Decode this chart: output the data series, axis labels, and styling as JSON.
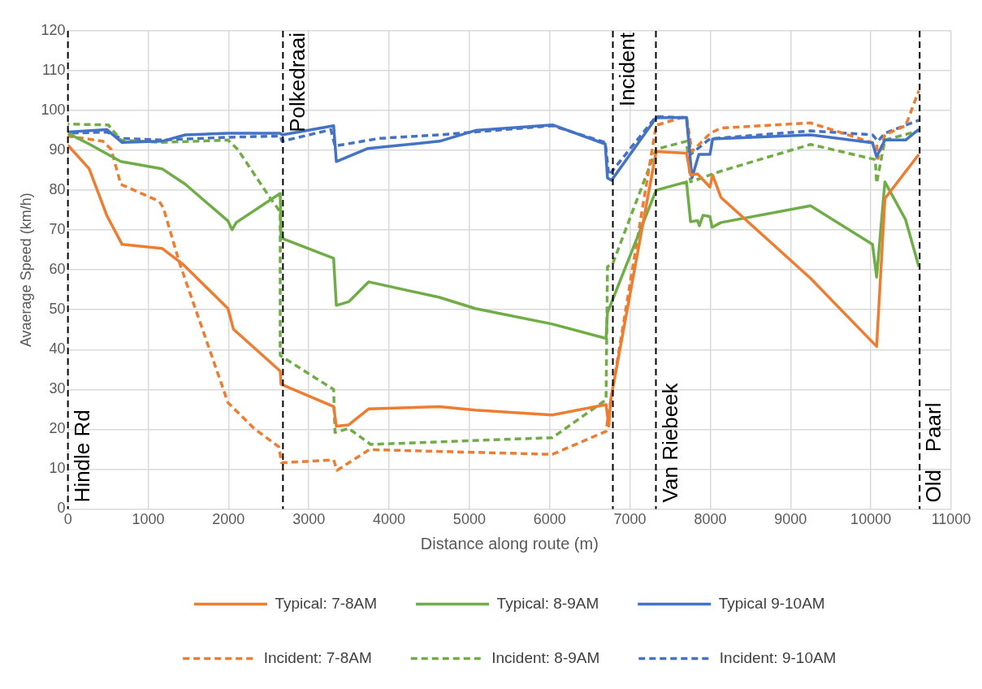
{
  "chart_data": {
    "type": "line",
    "xlabel": "Distance along route (m)",
    "ylabel": "Avaerage Speed (km/h)",
    "xlim": [
      0,
      11000
    ],
    "ylim": [
      0,
      120
    ],
    "xticks": [
      0,
      1000,
      2000,
      3000,
      4000,
      5000,
      6000,
      7000,
      8000,
      9000,
      10000,
      11000
    ],
    "yticks": [
      0,
      10,
      20,
      30,
      40,
      50,
      60,
      70,
      80,
      90,
      100,
      110,
      120
    ],
    "grid": true,
    "legend": "bottom",
    "series": [
      {
        "name": "Typical: 7-8AM",
        "color": "#ed7d31",
        "line_style": "solid",
        "x": [
          0,
          264,
          486,
          675,
          1171,
          1428,
          1993,
          2062,
          2644,
          2654,
          3309,
          3343,
          3497,
          3744,
          4628,
          5074,
          6034,
          6702,
          6737,
          6760,
          7326,
          7704,
          7755,
          7841,
          7996,
          8030,
          8133,
          9249,
          10072,
          10175,
          10598
        ],
        "values": [
          91.3,
          85.4,
          73.6,
          66.4,
          65.4,
          61.5,
          50.3,
          45.1,
          34.6,
          31.3,
          25.7,
          20.8,
          21.1,
          25.1,
          25.7,
          24.8,
          23.6,
          26.2,
          20.8,
          27.4,
          89.7,
          89.3,
          83.8,
          84.1,
          80.8,
          83.8,
          78.2,
          57.9,
          40.8,
          77.9,
          89.0
        ]
      },
      {
        "name": "Typical: 8-9AM",
        "color": "#70ad47",
        "line_style": "solid",
        "x": [
          0,
          264,
          658,
          1171,
          1462,
          1993,
          2045,
          2096,
          2644,
          2654,
          3309,
          3343,
          3497,
          3744,
          4628,
          5074,
          6034,
          6702,
          6720,
          7326,
          7704,
          7755,
          7841,
          7865,
          7910,
          7996,
          8023,
          8133,
          9249,
          10021,
          10072,
          10175,
          10433,
          10598
        ],
        "values": [
          94.3,
          91.6,
          87.2,
          85.4,
          81.5,
          72.3,
          70.1,
          71.9,
          79.2,
          68.0,
          62.9,
          51.1,
          52.0,
          57.0,
          53.1,
          50.3,
          46.4,
          42.8,
          49.3,
          80.0,
          82.1,
          72.1,
          72.4,
          71.1,
          73.7,
          73.4,
          70.7,
          71.9,
          76.1,
          66.4,
          58.2,
          82.1,
          72.6,
          60.8
        ]
      },
      {
        "name": "Typical 9-10AM",
        "color": "#4472c4",
        "line_style": "solid",
        "x": [
          0,
          486,
          675,
          1171,
          1462,
          1993,
          2644,
          2667,
          3309,
          3343,
          3737,
          4628,
          5074,
          6034,
          6692,
          6720,
          6771,
          7326,
          7704,
          7772,
          7858,
          7996,
          8030,
          9249,
          10021,
          10072,
          10175,
          10433,
          10598
        ],
        "values": [
          94.6,
          95.2,
          92.0,
          92.3,
          93.9,
          94.3,
          94.3,
          93.9,
          96.2,
          87.2,
          90.5,
          92.3,
          95.0,
          96.4,
          91.6,
          83.1,
          82.5,
          98.2,
          98.3,
          83.1,
          89.0,
          89.0,
          92.9,
          93.9,
          91.9,
          88.4,
          92.6,
          92.6,
          95.3
        ]
      },
      {
        "name": "Incident: 7-8AM",
        "color": "#ed7d31",
        "line_style": "dashed",
        "x": [
          0,
          435,
          538,
          658,
          1137,
          1188,
          1394,
          1993,
          2318,
          2627,
          2661,
          3309,
          3353,
          3754,
          6034,
          6702,
          6725,
          7326,
          7704,
          7772,
          8000,
          8133,
          9249,
          10072,
          10089,
          10175,
          10433,
          10598
        ],
        "values": [
          93.6,
          92.3,
          90.3,
          81.5,
          77.2,
          75.6,
          61.5,
          26.7,
          20.2,
          15.6,
          11.6,
          12.3,
          9.7,
          14.9,
          13.7,
          19.5,
          22.8,
          96.3,
          98.6,
          89.7,
          94.3,
          95.6,
          96.9,
          91.6,
          88.0,
          93.9,
          96.2,
          105
        ]
      },
      {
        "name": "Incident: 8-9AM",
        "color": "#70ad47",
        "line_style": "dashed",
        "x": [
          0,
          503,
          658,
          1171,
          1993,
          2113,
          2524,
          2644,
          2644,
          3309,
          3326,
          3497,
          3771,
          6034,
          6702,
          6720,
          6784,
          7326,
          7704,
          7755,
          8133,
          9249,
          10055,
          10072,
          10175,
          10598
        ],
        "values": [
          96.6,
          96.4,
          92.6,
          92.0,
          92.6,
          90.3,
          77.9,
          74.6,
          38.5,
          30.0,
          19.2,
          20.2,
          16.2,
          17.9,
          27.4,
          60.8,
          61.5,
          90.3,
          92.3,
          82.1,
          84.8,
          91.5,
          87.7,
          81.8,
          92.6,
          94.9
        ]
      },
      {
        "name": "Incident: 9-10AM",
        "color": "#4472c4",
        "line_style": "dashed",
        "x": [
          0,
          486,
          658,
          1171,
          1993,
          2644,
          2667,
          3275,
          3326,
          3874,
          4628,
          6034,
          6692,
          6737,
          7326,
          7704,
          7755,
          7996,
          9249,
          10021,
          10089,
          10175,
          10598
        ],
        "values": [
          94.3,
          94.6,
          93.0,
          92.6,
          93.3,
          93.6,
          92.3,
          95.2,
          91.1,
          93.0,
          93.9,
          96.2,
          92.0,
          83.8,
          98.5,
          98.2,
          89.0,
          92.9,
          94.9,
          93.9,
          92.3,
          94.3,
          97.6
        ]
      }
    ],
    "ref_lines": [
      {
        "axis": "x",
        "value": 0,
        "label": "Hindle Rd",
        "color": "#000000",
        "line_style": "dashed"
      },
      {
        "axis": "x",
        "value": 2678,
        "label": "Polkedraai",
        "color": "#000000",
        "line_style": "dashed"
      },
      {
        "axis": "x",
        "value": 6787,
        "label": "Incident",
        "color": "#000000",
        "line_style": "dashed"
      },
      {
        "axis": "x",
        "value": 7323,
        "label": "Van Riebeek",
        "color": "#000000",
        "line_style": "dashed"
      },
      {
        "axis": "x",
        "value": 10608,
        "label": "Old   Paarl",
        "color": "#000000",
        "line_style": "dashed"
      }
    ]
  }
}
